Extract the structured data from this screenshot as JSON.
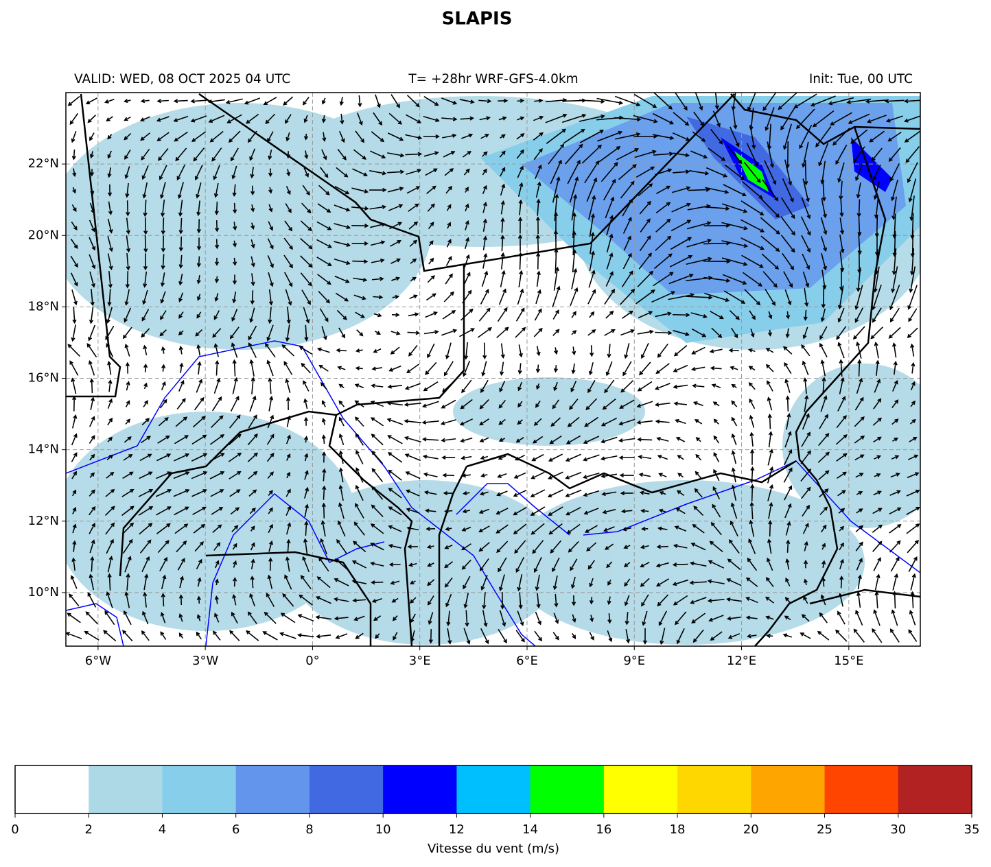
{
  "title": "SLAPIS",
  "subtitle_left": "VALID: WED, 08 OCT 2025 04 UTC",
  "subtitle_center": "T= +28hr WRF-GFS-4.0km",
  "subtitle_right": "Init: Tue, 00 UTC",
  "map": {
    "lonlim": [
      -6.9,
      17
    ],
    "latlim": [
      8.5,
      24
    ],
    "lonticks": [
      {
        "value": -6,
        "label": "6°W"
      },
      {
        "value": -3,
        "label": "3°W"
      },
      {
        "value": 0,
        "label": "0°"
      },
      {
        "value": 3,
        "label": "3°E"
      },
      {
        "value": 6,
        "label": "6°E"
      },
      {
        "value": 9,
        "label": "9°E"
      },
      {
        "value": 12,
        "label": "12°E"
      },
      {
        "value": 15,
        "label": "15°E"
      }
    ],
    "latticks": [
      {
        "value": 10,
        "label": "10°N"
      },
      {
        "value": 12,
        "label": "12°N"
      },
      {
        "value": 14,
        "label": "14°N"
      },
      {
        "value": 16,
        "label": "16°N"
      },
      {
        "value": 18,
        "label": "18°N"
      },
      {
        "value": 20,
        "label": "20°N"
      },
      {
        "value": 22,
        "label": "22°N"
      }
    ],
    "grid": true
  },
  "colorbar": {
    "label": "Vitesse du vent (m/s)",
    "levels": [
      0,
      2,
      4,
      6,
      8,
      10,
      12,
      14,
      16,
      18,
      20,
      25,
      30,
      35
    ],
    "colors": [
      "#ffffff",
      "#add8e6",
      "#87ceeb",
      "#6495ed",
      "#4169e1",
      "#0000ff",
      "#00bfff",
      "#00ff00",
      "#ffff00",
      "#ffd700",
      "#ffa500",
      "#ff4500",
      "#b22222"
    ]
  }
}
